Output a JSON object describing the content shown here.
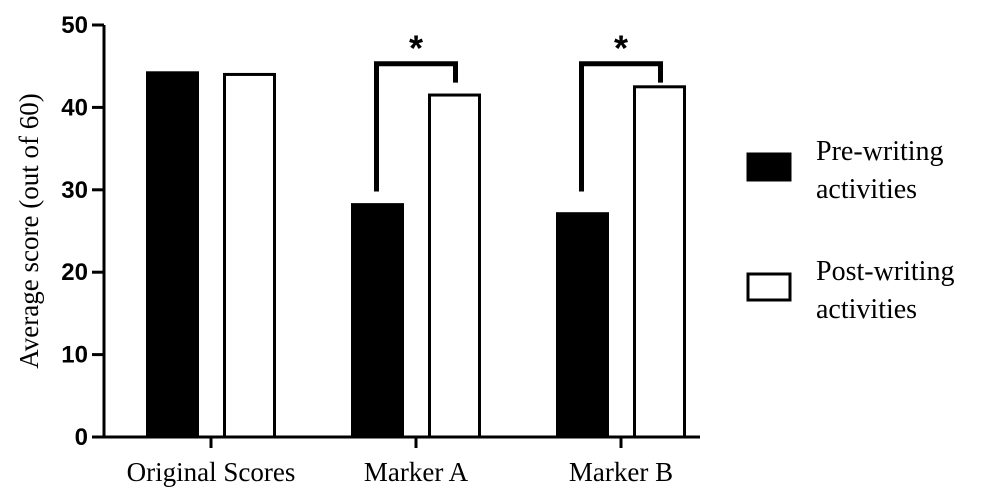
{
  "chart_data": {
    "type": "bar",
    "categories": [
      "Original Scores",
      "Marker A",
      "Marker B"
    ],
    "series": [
      {
        "name": "Pre-writing activities",
        "legend_lines": [
          "Pre-writing",
          "activities"
        ],
        "values": [
          44.2,
          28.2,
          27.1
        ],
        "fill": "#000000"
      },
      {
        "name": "Post-writing activities",
        "legend_lines": [
          "Post-writing",
          "activities"
        ],
        "values": [
          44.0,
          41.5,
          42.5
        ],
        "fill": "#ffffff"
      }
    ],
    "ylabel": "Average score (out of 60)",
    "xlabel": "",
    "ylim": [
      0,
      50
    ],
    "yticks": [
      0,
      10,
      20,
      30,
      40,
      50
    ],
    "grid": false,
    "legend_position": "right",
    "significance": [
      {
        "category": "Marker A",
        "label": "*"
      },
      {
        "category": "Marker B",
        "label": "*"
      }
    ]
  }
}
